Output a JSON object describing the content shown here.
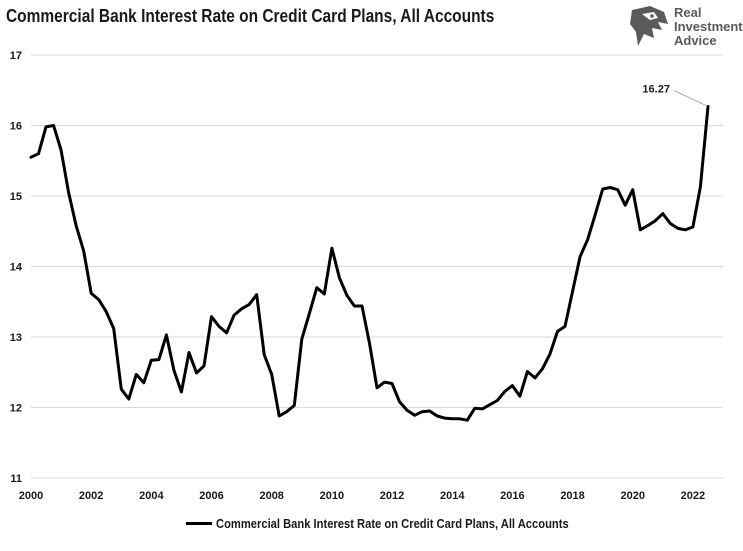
{
  "chart_data": {
    "type": "line",
    "title": "Commercial Bank Interest Rate on Credit Card Plans, All Accounts",
    "xlabel": "",
    "ylabel": "",
    "xlim": [
      2000,
      2023
    ],
    "ylim": [
      11,
      17
    ],
    "grid": true,
    "legend_position": "bottom-center",
    "x_ticks": [
      2000,
      2002,
      2004,
      2006,
      2008,
      2010,
      2012,
      2014,
      2016,
      2018,
      2020,
      2022
    ],
    "x_tick_labels": [
      "2000",
      "2002",
      "2004",
      "2006",
      "2008",
      "2010",
      "2012",
      "2014",
      "2016",
      "2018",
      "2020",
      "2022"
    ],
    "y_ticks": [
      11,
      12,
      13,
      14,
      15,
      16,
      17
    ],
    "y_tick_labels": [
      "11",
      "12",
      "13",
      "14",
      "15",
      "16",
      "17"
    ],
    "series": [
      {
        "name": "Commercial Bank Interest Rate on Credit Card Plans, All Accounts",
        "color": "#000000",
        "x": [
          2000.0,
          2000.25,
          2000.5,
          2000.75,
          2001.0,
          2001.25,
          2001.5,
          2001.75,
          2002.0,
          2002.25,
          2002.5,
          2002.75,
          2003.0,
          2003.25,
          2003.5,
          2003.75,
          2004.0,
          2004.25,
          2004.5,
          2004.75,
          2005.0,
          2005.25,
          2005.5,
          2005.75,
          2006.0,
          2006.25,
          2006.5,
          2006.75,
          2007.0,
          2007.25,
          2007.5,
          2007.75,
          2008.0,
          2008.25,
          2008.5,
          2008.75,
          2009.0,
          2009.25,
          2009.5,
          2009.75,
          2010.0,
          2010.25,
          2010.5,
          2010.75,
          2011.0,
          2011.25,
          2011.5,
          2011.75,
          2012.0,
          2012.25,
          2012.5,
          2012.75,
          2013.0,
          2013.25,
          2013.5,
          2013.75,
          2014.0,
          2014.25,
          2014.5,
          2014.75,
          2015.0,
          2015.25,
          2015.5,
          2015.75,
          2016.0,
          2016.25,
          2016.5,
          2016.75,
          2017.0,
          2017.25,
          2017.5,
          2017.75,
          2018.0,
          2018.25,
          2018.5,
          2018.75,
          2019.0,
          2019.25,
          2019.5,
          2019.75,
          2020.0,
          2020.25,
          2020.5,
          2020.75,
          2021.0,
          2021.25,
          2021.5,
          2021.75,
          2022.0,
          2022.25,
          2022.5
        ],
        "values": [
          15.55,
          15.6,
          15.98,
          16.0,
          15.65,
          15.05,
          14.58,
          14.22,
          13.62,
          13.53,
          13.36,
          13.12,
          12.26,
          12.12,
          12.47,
          12.35,
          12.67,
          12.68,
          13.03,
          12.53,
          12.22,
          12.78,
          12.49,
          12.59,
          13.29,
          13.15,
          13.06,
          13.31,
          13.4,
          13.46,
          13.6,
          12.75,
          12.47,
          11.88,
          11.94,
          12.03,
          12.97,
          13.33,
          13.7,
          13.61,
          14.26,
          13.84,
          13.59,
          13.44,
          13.44,
          12.91,
          12.28,
          12.36,
          12.34,
          12.08,
          11.96,
          11.89,
          11.94,
          11.95,
          11.88,
          11.85,
          11.84,
          11.84,
          11.82,
          11.99,
          11.98,
          12.04,
          12.1,
          12.23,
          12.31,
          12.16,
          12.51,
          12.42,
          12.55,
          12.76,
          13.08,
          13.15,
          13.65,
          14.14,
          14.38,
          14.73,
          15.1,
          15.12,
          15.09,
          14.87,
          15.09,
          14.52,
          14.58,
          14.65,
          14.75,
          14.61,
          14.54,
          14.52,
          14.56,
          15.13,
          16.27
        ]
      }
    ],
    "annotations": [
      {
        "text": "16.27",
        "x": 2022.5,
        "y": 16.27
      }
    ]
  },
  "branding": {
    "logo_line1": "Real",
    "logo_line2": "Investment",
    "logo_line3": "Advice",
    "logo_icon": "eagle-head-icon"
  },
  "colors": {
    "line": "#000000",
    "grid": "#d9d9d9",
    "text": "#1a1a1a",
    "logo": "#5a5a5a"
  }
}
